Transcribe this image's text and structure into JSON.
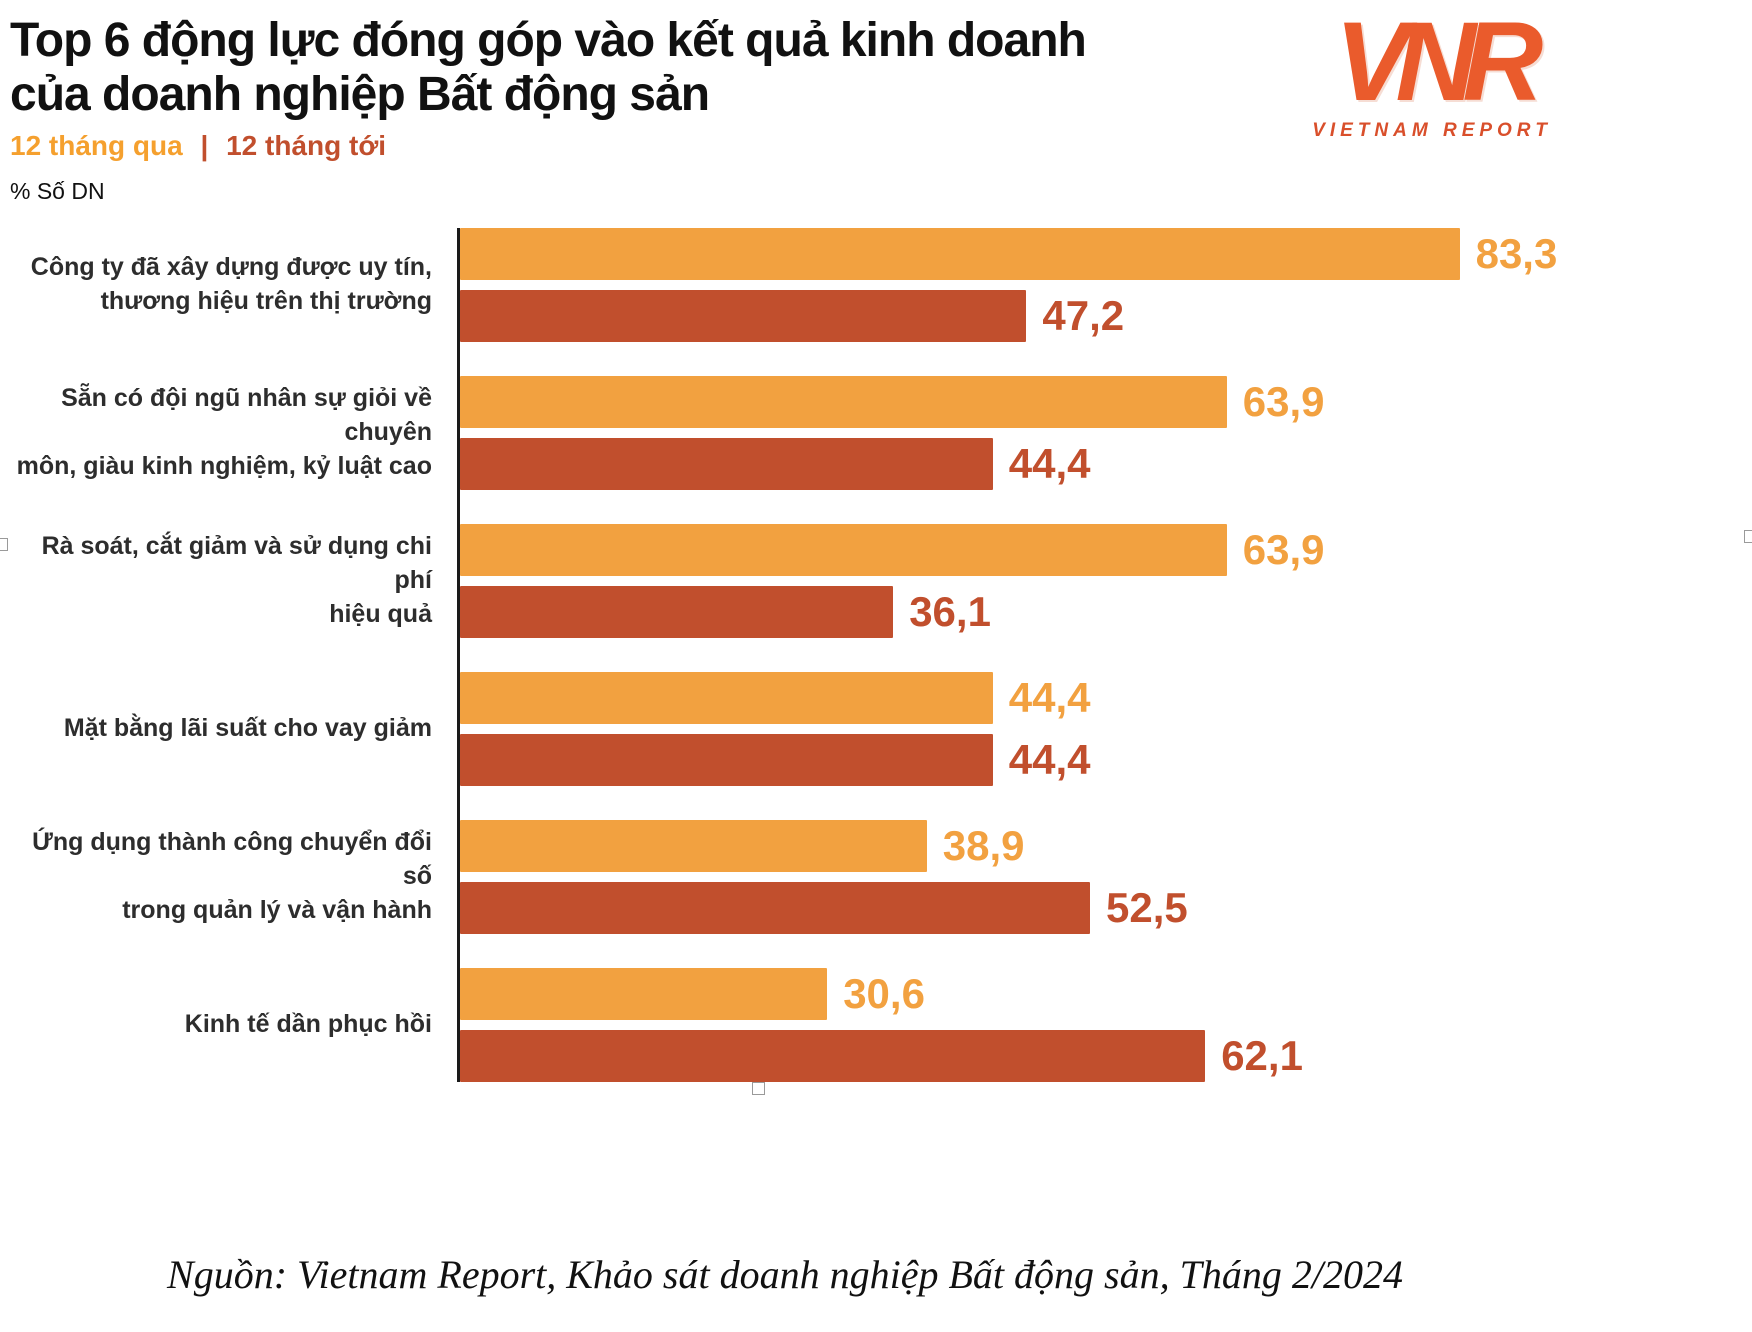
{
  "header": {
    "title_line1": "Top 6 động lực đóng góp vào kết quả kinh doanh",
    "title_line2": "của doanh nghiệp Bất động sản",
    "legend_past": "12 tháng qua",
    "legend_separator": "|",
    "legend_next": "12 tháng tới",
    "unit_label": "% Số DN"
  },
  "logo": {
    "acronym": "VNR",
    "name": "VIETNAM REPORT"
  },
  "source_note": "Nguồn: Vietnam Report, Khảo sát doanh nghiệp Bất động sản, Tháng 2/2024",
  "colors": {
    "past": "#F2A140",
    "next": "#C14F2D",
    "axis": "#1a1a1a"
  },
  "chart_data": {
    "type": "bar",
    "orientation": "horizontal",
    "title": "Top 6 động lực đóng góp vào kết quả kinh doanh của doanh nghiệp Bất động sản",
    "xlabel": "% Số DN",
    "ylabel": "",
    "xlim": [
      0,
      100
    ],
    "grid": false,
    "legend_position": "top-left",
    "categories": [
      "Công ty đã xây dựng được uy tín,\nthương hiệu trên thị trường",
      "Sẵn có đội ngũ nhân sự giỏi về chuyên\nmôn, giàu kinh nghiệm, kỷ luật cao",
      "Rà soát, cắt giảm và sử dụng chi phí\nhiệu quả",
      "Mặt bằng lãi suất cho vay giảm",
      "Ứng dụng thành công chuyển đổi số\ntrong quản lý và vận hành",
      "Kinh tế dần phục hồi"
    ],
    "series": [
      {
        "name": "12 tháng qua",
        "color": "#F2A140",
        "values": [
          83.3,
          63.9,
          63.9,
          44.4,
          38.9,
          30.6
        ],
        "labels": [
          "83,3",
          "63,9",
          "63,9",
          "44,4",
          "38,9",
          "30,6"
        ]
      },
      {
        "name": "12 tháng tới",
        "color": "#C14F2D",
        "values": [
          47.2,
          44.4,
          36.1,
          44.4,
          52.5,
          62.1
        ],
        "labels": [
          "47,2",
          "44,4",
          "36,1",
          "44,4",
          "52,5",
          "62,1"
        ]
      }
    ]
  }
}
